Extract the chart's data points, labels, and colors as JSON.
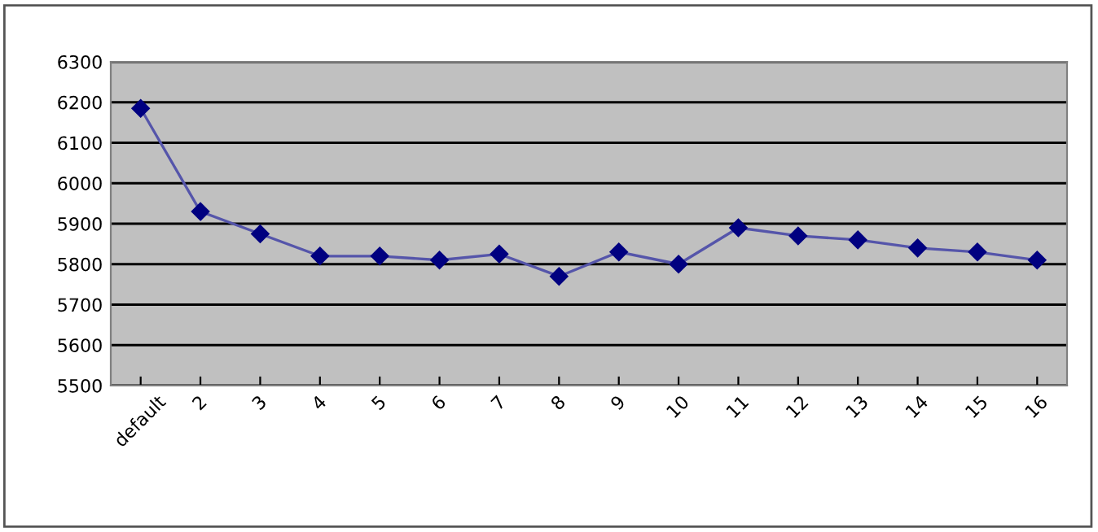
{
  "chart_data": {
    "type": "line",
    "categories": [
      "default",
      "2",
      "3",
      "4",
      "5",
      "6",
      "7",
      "8",
      "9",
      "10",
      "11",
      "12",
      "13",
      "14",
      "15",
      "16"
    ],
    "series": [
      {
        "color": "#000080",
        "values": [
          6185,
          5930,
          5875,
          5820,
          5820,
          5810,
          5825,
          5770,
          5830,
          5800,
          5890,
          5870,
          5860,
          5840,
          5830,
          5810
        ]
      }
    ],
    "ylim": [
      5500,
      6300
    ],
    "yticks": [
      5500,
      5600,
      5700,
      5800,
      5900,
      6000,
      6100,
      6200,
      6300
    ],
    "grid": "y",
    "marker": "diamond",
    "line_style": "solid"
  }
}
